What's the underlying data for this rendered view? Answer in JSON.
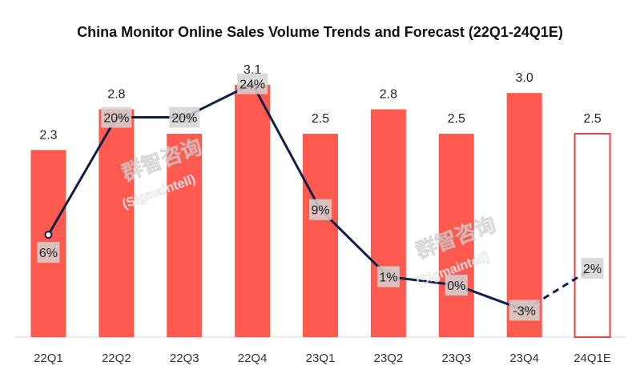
{
  "chart_data": {
    "type": "bar",
    "title": "China Monitor Online Sales Volume Trends and Forecast (22Q1-24Q1E)",
    "categories": [
      "22Q1",
      "22Q2",
      "22Q3",
      "22Q4",
      "23Q1",
      "23Q2",
      "23Q3",
      "23Q4",
      "24Q1E"
    ],
    "series": [
      {
        "values": [
          2.3,
          2.8,
          2.5,
          3.1,
          2.5,
          2.8,
          2.5,
          3.0,
          2.5
        ]
      },
      {
        "values": [
          6,
          20,
          20,
          24,
          9,
          1,
          0,
          -3,
          2
        ]
      }
    ],
    "bar_labels": [
      "2.3",
      "2.8",
      "2.5",
      "3.1",
      "2.5",
      "2.8",
      "2.5",
      "3.0",
      "2.5"
    ],
    "line_labels": [
      "6%",
      "20%",
      "20%",
      "24%",
      "9%",
      "1%",
      "0%",
      "-3%",
      "2%"
    ],
    "forecast_categories": [
      "24Q1E"
    ],
    "watermark_text": [
      "群智咨询",
      "(Sigmaintell)"
    ],
    "colors": {
      "bar": "#ff5a50",
      "forecast_bar_outline": "#e8453c",
      "line": "#0f1f47",
      "label_box": "#d4d4d4"
    }
  }
}
